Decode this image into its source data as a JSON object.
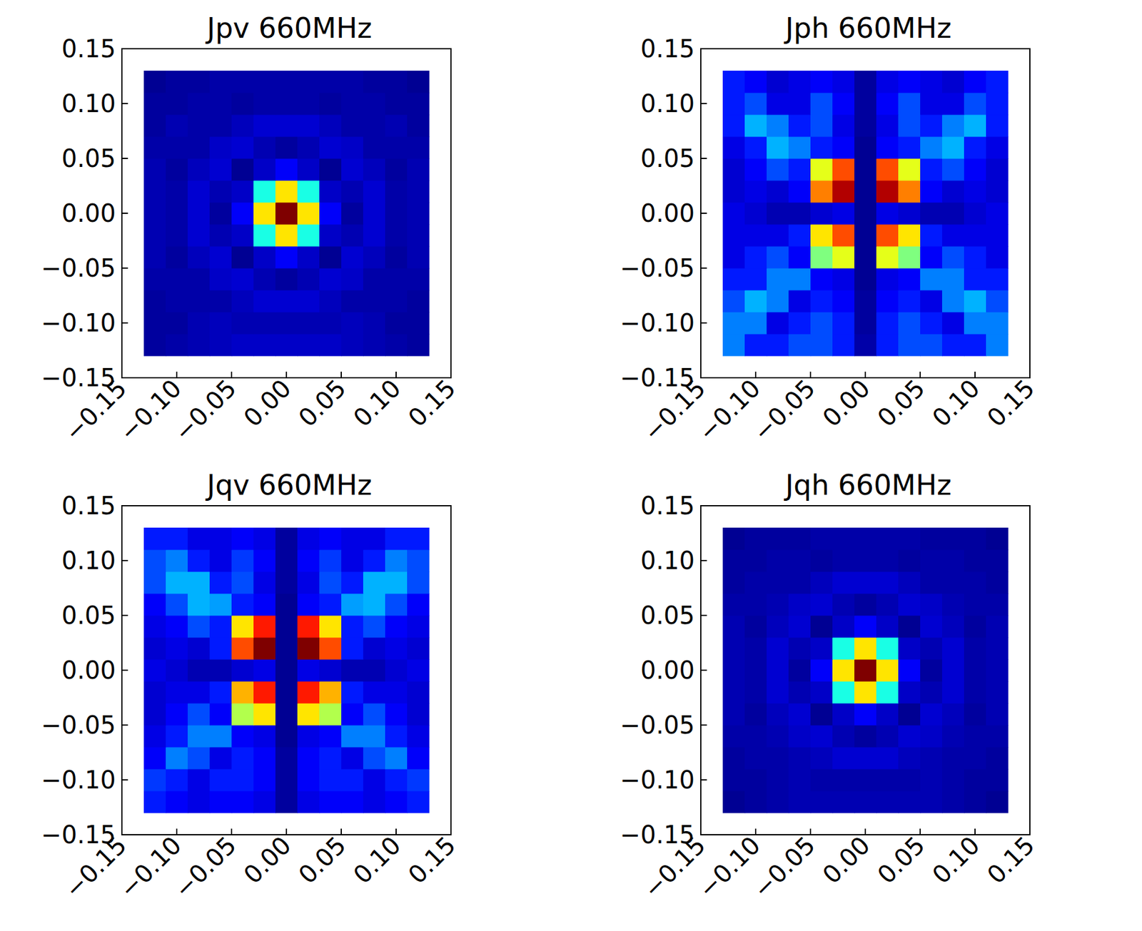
{
  "chart_data": [
    {
      "type": "heatmap",
      "title": "Jpv 660MHz",
      "x": [
        -0.12,
        -0.1,
        -0.08,
        -0.06,
        -0.04,
        -0.02,
        0.0,
        0.02,
        0.04,
        0.06,
        0.08,
        0.1,
        0.12
      ],
      "y": [
        -0.12,
        -0.1,
        -0.08,
        -0.06,
        -0.04,
        -0.02,
        0.0,
        0.02,
        0.04,
        0.06,
        0.08,
        0.1,
        0.12
      ],
      "cells": [
        [
          0.03,
          0.04,
          0.05,
          0.06,
          0.07,
          0.07,
          0.07,
          0.07,
          0.07,
          0.06,
          0.05,
          0.04,
          0.03
        ],
        [
          0.03,
          0.03,
          0.05,
          0.06,
          0.05,
          0.05,
          0.05,
          0.05,
          0.05,
          0.06,
          0.05,
          0.03,
          0.03
        ],
        [
          0.03,
          0.04,
          0.04,
          0.04,
          0.06,
          0.08,
          0.08,
          0.08,
          0.06,
          0.04,
          0.04,
          0.04,
          0.03
        ],
        [
          0.04,
          0.04,
          0.04,
          0.07,
          0.08,
          0.05,
          0.03,
          0.05,
          0.08,
          0.07,
          0.04,
          0.04,
          0.04
        ],
        [
          0.05,
          0.03,
          0.06,
          0.08,
          0.02,
          0.07,
          0.12,
          0.07,
          0.02,
          0.08,
          0.06,
          0.03,
          0.05
        ],
        [
          0.05,
          0.04,
          0.08,
          0.05,
          0.07,
          0.4,
          0.65,
          0.4,
          0.07,
          0.05,
          0.08,
          0.04,
          0.05
        ],
        [
          0.05,
          0.04,
          0.08,
          0.03,
          0.12,
          0.65,
          1.0,
          0.65,
          0.12,
          0.03,
          0.08,
          0.04,
          0.05
        ],
        [
          0.05,
          0.04,
          0.08,
          0.05,
          0.07,
          0.4,
          0.65,
          0.4,
          0.07,
          0.05,
          0.08,
          0.04,
          0.05
        ],
        [
          0.05,
          0.03,
          0.06,
          0.08,
          0.02,
          0.07,
          0.12,
          0.07,
          0.02,
          0.08,
          0.06,
          0.03,
          0.05
        ],
        [
          0.04,
          0.04,
          0.04,
          0.07,
          0.08,
          0.05,
          0.03,
          0.05,
          0.08,
          0.07,
          0.04,
          0.04,
          0.04
        ],
        [
          0.03,
          0.05,
          0.04,
          0.04,
          0.06,
          0.08,
          0.08,
          0.08,
          0.06,
          0.04,
          0.04,
          0.05,
          0.03
        ],
        [
          0.03,
          0.03,
          0.04,
          0.04,
          0.03,
          0.04,
          0.04,
          0.04,
          0.03,
          0.04,
          0.04,
          0.03,
          0.03
        ],
        [
          0.02,
          0.03,
          0.03,
          0.04,
          0.04,
          0.04,
          0.04,
          0.04,
          0.04,
          0.04,
          0.03,
          0.03,
          0.02
        ]
      ],
      "zlim": [
        0,
        1
      ],
      "xlim": [
        -0.15,
        0.15
      ],
      "ylim": [
        -0.15,
        0.15
      ],
      "xticks": [
        {
          "value": -0.15,
          "label": "−0.15"
        },
        {
          "value": -0.1,
          "label": "−0.10"
        },
        {
          "value": -0.05,
          "label": "−0.05"
        },
        {
          "value": 0,
          "label": "0.00"
        },
        {
          "value": 0.05,
          "label": "0.05"
        },
        {
          "value": 0.1,
          "label": "0.10"
        },
        {
          "value": 0.15,
          "label": "0.15"
        }
      ],
      "yticks": [
        {
          "value": -0.15,
          "label": "−0.15"
        },
        {
          "value": -0.1,
          "label": "−0.10"
        },
        {
          "value": -0.05,
          "label": "−0.05"
        },
        {
          "value": 0,
          "label": "0.00"
        },
        {
          "value": 0.05,
          "label": "0.05"
        },
        {
          "value": 0.1,
          "label": "0.10"
        },
        {
          "value": 0.15,
          "label": "0.15"
        }
      ]
    },
    {
      "type": "heatmap",
      "title": "Jph 660MHz",
      "x": [
        -0.12,
        -0.1,
        -0.08,
        -0.06,
        -0.04,
        -0.02,
        0.0,
        0.02,
        0.04,
        0.06,
        0.08,
        0.1,
        0.12
      ],
      "y": [
        -0.12,
        -0.1,
        -0.08,
        -0.06,
        -0.04,
        -0.02,
        0.0,
        0.02,
        0.04,
        0.06,
        0.08,
        0.1,
        0.12
      ],
      "cells": [
        [
          0.25,
          0.15,
          0.15,
          0.2,
          0.2,
          0.15,
          0.04,
          0.15,
          0.2,
          0.2,
          0.15,
          0.15,
          0.25
        ],
        [
          0.25,
          0.25,
          0.1,
          0.15,
          0.2,
          0.15,
          0.03,
          0.15,
          0.2,
          0.15,
          0.1,
          0.25,
          0.25
        ],
        [
          0.2,
          0.3,
          0.25,
          0.1,
          0.15,
          0.12,
          0.03,
          0.12,
          0.15,
          0.1,
          0.25,
          0.3,
          0.2
        ],
        [
          0.15,
          0.15,
          0.25,
          0.25,
          0.12,
          0.1,
          0.02,
          0.1,
          0.12,
          0.25,
          0.25,
          0.15,
          0.15
        ],
        [
          0.1,
          0.15,
          0.2,
          0.12,
          0.5,
          0.6,
          0.02,
          0.6,
          0.5,
          0.12,
          0.2,
          0.15,
          0.1
        ],
        [
          0.1,
          0.1,
          0.1,
          0.15,
          0.65,
          0.8,
          0.02,
          0.8,
          0.65,
          0.15,
          0.1,
          0.1,
          0.1
        ],
        [
          0.1,
          0.08,
          0.05,
          0.05,
          0.08,
          0.1,
          0.02,
          0.1,
          0.08,
          0.05,
          0.05,
          0.08,
          0.1
        ],
        [
          0.08,
          0.1,
          0.08,
          0.12,
          0.75,
          0.95,
          0.02,
          0.95,
          0.75,
          0.12,
          0.08,
          0.1,
          0.08
        ],
        [
          0.08,
          0.12,
          0.2,
          0.15,
          0.6,
          0.8,
          0.02,
          0.8,
          0.6,
          0.15,
          0.2,
          0.12,
          0.08
        ],
        [
          0.1,
          0.15,
          0.3,
          0.25,
          0.15,
          0.12,
          0.02,
          0.12,
          0.15,
          0.25,
          0.3,
          0.15,
          0.1
        ],
        [
          0.15,
          0.3,
          0.25,
          0.15,
          0.2,
          0.1,
          0.03,
          0.1,
          0.2,
          0.15,
          0.25,
          0.3,
          0.15
        ],
        [
          0.15,
          0.2,
          0.1,
          0.1,
          0.2,
          0.12,
          0.03,
          0.12,
          0.2,
          0.1,
          0.1,
          0.2,
          0.15
        ],
        [
          0.15,
          0.12,
          0.08,
          0.1,
          0.12,
          0.1,
          0.03,
          0.1,
          0.12,
          0.1,
          0.08,
          0.12,
          0.15
        ]
      ],
      "zlim": [
        0,
        1
      ],
      "xlim": [
        -0.15,
        0.15
      ],
      "ylim": [
        -0.15,
        0.15
      ],
      "xticks": [
        {
          "value": -0.15,
          "label": "−0.15"
        },
        {
          "value": -0.1,
          "label": "−0.10"
        },
        {
          "value": -0.05,
          "label": "−0.05"
        },
        {
          "value": 0,
          "label": "0.00"
        },
        {
          "value": 0.05,
          "label": "0.05"
        },
        {
          "value": 0.1,
          "label": "0.10"
        },
        {
          "value": 0.15,
          "label": "0.15"
        }
      ],
      "yticks": [
        {
          "value": -0.15,
          "label": "−0.15"
        },
        {
          "value": -0.1,
          "label": "−0.10"
        },
        {
          "value": -0.05,
          "label": "−0.05"
        },
        {
          "value": 0,
          "label": "0.00"
        },
        {
          "value": 0.05,
          "label": "0.05"
        },
        {
          "value": 0.1,
          "label": "0.10"
        },
        {
          "value": 0.15,
          "label": "0.15"
        }
      ]
    },
    {
      "type": "heatmap",
      "title": "Jqv 660MHz",
      "x": [
        -0.12,
        -0.1,
        -0.08,
        -0.06,
        -0.04,
        -0.02,
        0.0,
        0.02,
        0.04,
        0.06,
        0.08,
        0.1,
        0.12
      ],
      "y": [
        -0.12,
        -0.1,
        -0.08,
        -0.06,
        -0.04,
        -0.02,
        0.0,
        0.02,
        0.04,
        0.06,
        0.08,
        0.1,
        0.12
      ],
      "cells": [
        [
          0.15,
          0.12,
          0.1,
          0.12,
          0.12,
          0.1,
          0.03,
          0.1,
          0.12,
          0.12,
          0.1,
          0.12,
          0.15
        ],
        [
          0.18,
          0.15,
          0.1,
          0.15,
          0.15,
          0.12,
          0.03,
          0.12,
          0.15,
          0.15,
          0.1,
          0.15,
          0.18
        ],
        [
          0.12,
          0.25,
          0.2,
          0.1,
          0.15,
          0.12,
          0.03,
          0.12,
          0.15,
          0.1,
          0.2,
          0.25,
          0.12
        ],
        [
          0.1,
          0.15,
          0.25,
          0.25,
          0.12,
          0.1,
          0.02,
          0.1,
          0.12,
          0.25,
          0.25,
          0.15,
          0.1
        ],
        [
          0.08,
          0.12,
          0.2,
          0.12,
          0.55,
          0.65,
          0.02,
          0.65,
          0.55,
          0.12,
          0.2,
          0.12,
          0.08
        ],
        [
          0.08,
          0.1,
          0.1,
          0.15,
          0.7,
          0.85,
          0.02,
          0.85,
          0.7,
          0.15,
          0.1,
          0.1,
          0.08
        ],
        [
          0.1,
          0.08,
          0.05,
          0.05,
          0.08,
          0.1,
          0.02,
          0.1,
          0.08,
          0.05,
          0.05,
          0.08,
          0.1
        ],
        [
          0.08,
          0.1,
          0.08,
          0.15,
          0.8,
          1.0,
          0.02,
          1.0,
          0.8,
          0.15,
          0.08,
          0.1,
          0.08
        ],
        [
          0.1,
          0.12,
          0.2,
          0.15,
          0.65,
          0.85,
          0.02,
          0.85,
          0.65,
          0.15,
          0.2,
          0.12,
          0.1
        ],
        [
          0.12,
          0.2,
          0.3,
          0.28,
          0.15,
          0.12,
          0.02,
          0.12,
          0.15,
          0.28,
          0.3,
          0.2,
          0.12
        ],
        [
          0.2,
          0.3,
          0.3,
          0.15,
          0.2,
          0.1,
          0.03,
          0.1,
          0.2,
          0.15,
          0.3,
          0.3,
          0.2
        ],
        [
          0.2,
          0.25,
          0.15,
          0.1,
          0.18,
          0.12,
          0.03,
          0.12,
          0.18,
          0.1,
          0.15,
          0.25,
          0.2
        ],
        [
          0.15,
          0.15,
          0.1,
          0.1,
          0.12,
          0.1,
          0.03,
          0.1,
          0.12,
          0.1,
          0.1,
          0.15,
          0.15
        ]
      ],
      "zlim": [
        0,
        1
      ],
      "xlim": [
        -0.15,
        0.15
      ],
      "ylim": [
        -0.15,
        0.15
      ],
      "xticks": [
        {
          "value": -0.15,
          "label": "−0.15"
        },
        {
          "value": -0.1,
          "label": "−0.10"
        },
        {
          "value": -0.05,
          "label": "−0.05"
        },
        {
          "value": 0,
          "label": "0.00"
        },
        {
          "value": 0.05,
          "label": "0.05"
        },
        {
          "value": 0.1,
          "label": "0.10"
        },
        {
          "value": 0.15,
          "label": "0.15"
        }
      ],
      "yticks": [
        {
          "value": -0.15,
          "label": "−0.15"
        },
        {
          "value": -0.1,
          "label": "−0.10"
        },
        {
          "value": -0.05,
          "label": "−0.05"
        },
        {
          "value": 0,
          "label": "0.00"
        },
        {
          "value": 0.05,
          "label": "0.05"
        },
        {
          "value": 0.1,
          "label": "0.10"
        },
        {
          "value": 0.15,
          "label": "0.15"
        }
      ]
    },
    {
      "type": "heatmap",
      "title": "Jqh 660MHz",
      "x": [
        -0.12,
        -0.1,
        -0.08,
        -0.06,
        -0.04,
        -0.02,
        0.0,
        0.02,
        0.04,
        0.06,
        0.08,
        0.1,
        0.12
      ],
      "y": [
        -0.12,
        -0.1,
        -0.08,
        -0.06,
        -0.04,
        -0.02,
        0.0,
        0.02,
        0.04,
        0.06,
        0.08,
        0.1,
        0.12
      ],
      "cells": [
        [
          0.02,
          0.03,
          0.04,
          0.05,
          0.05,
          0.05,
          0.05,
          0.05,
          0.05,
          0.05,
          0.04,
          0.03,
          0.02
        ],
        [
          0.03,
          0.03,
          0.04,
          0.05,
          0.04,
          0.04,
          0.04,
          0.04,
          0.04,
          0.05,
          0.04,
          0.03,
          0.03
        ],
        [
          0.03,
          0.04,
          0.04,
          0.05,
          0.06,
          0.08,
          0.08,
          0.08,
          0.06,
          0.05,
          0.04,
          0.04,
          0.03
        ],
        [
          0.04,
          0.04,
          0.05,
          0.07,
          0.08,
          0.05,
          0.03,
          0.05,
          0.08,
          0.07,
          0.05,
          0.04,
          0.04
        ],
        [
          0.05,
          0.03,
          0.06,
          0.08,
          0.02,
          0.07,
          0.12,
          0.07,
          0.02,
          0.08,
          0.06,
          0.03,
          0.05
        ],
        [
          0.05,
          0.04,
          0.08,
          0.05,
          0.07,
          0.4,
          0.65,
          0.4,
          0.07,
          0.05,
          0.08,
          0.04,
          0.05
        ],
        [
          0.05,
          0.04,
          0.08,
          0.03,
          0.12,
          0.65,
          1.0,
          0.65,
          0.12,
          0.03,
          0.08,
          0.04,
          0.05
        ],
        [
          0.05,
          0.04,
          0.08,
          0.05,
          0.07,
          0.4,
          0.65,
          0.4,
          0.07,
          0.05,
          0.08,
          0.04,
          0.05
        ],
        [
          0.05,
          0.03,
          0.06,
          0.08,
          0.02,
          0.07,
          0.12,
          0.07,
          0.02,
          0.08,
          0.06,
          0.03,
          0.05
        ],
        [
          0.04,
          0.04,
          0.05,
          0.07,
          0.08,
          0.05,
          0.03,
          0.05,
          0.08,
          0.07,
          0.05,
          0.04,
          0.04
        ],
        [
          0.03,
          0.04,
          0.04,
          0.04,
          0.06,
          0.08,
          0.08,
          0.08,
          0.06,
          0.04,
          0.04,
          0.04,
          0.03
        ],
        [
          0.03,
          0.03,
          0.04,
          0.04,
          0.03,
          0.04,
          0.04,
          0.04,
          0.03,
          0.04,
          0.04,
          0.03,
          0.03
        ],
        [
          0.02,
          0.03,
          0.03,
          0.03,
          0.04,
          0.04,
          0.04,
          0.04,
          0.04,
          0.03,
          0.03,
          0.03,
          0.02
        ]
      ],
      "zlim": [
        0,
        1
      ],
      "xlim": [
        -0.15,
        0.15
      ],
      "ylim": [
        -0.15,
        0.15
      ],
      "xticks": [
        {
          "value": -0.15,
          "label": "−0.15"
        },
        {
          "value": -0.1,
          "label": "−0.10"
        },
        {
          "value": -0.05,
          "label": "−0.05"
        },
        {
          "value": 0,
          "label": "0.00"
        },
        {
          "value": 0.05,
          "label": "0.05"
        },
        {
          "value": 0.1,
          "label": "0.10"
        },
        {
          "value": 0.15,
          "label": "0.15"
        }
      ],
      "yticks": [
        {
          "value": -0.15,
          "label": "−0.15"
        },
        {
          "value": -0.1,
          "label": "−0.10"
        },
        {
          "value": -0.05,
          "label": "−0.05"
        },
        {
          "value": 0,
          "label": "0.00"
        },
        {
          "value": 0.05,
          "label": "0.05"
        },
        {
          "value": 0.1,
          "label": "0.10"
        },
        {
          "value": 0.15,
          "label": "0.15"
        }
      ]
    }
  ]
}
